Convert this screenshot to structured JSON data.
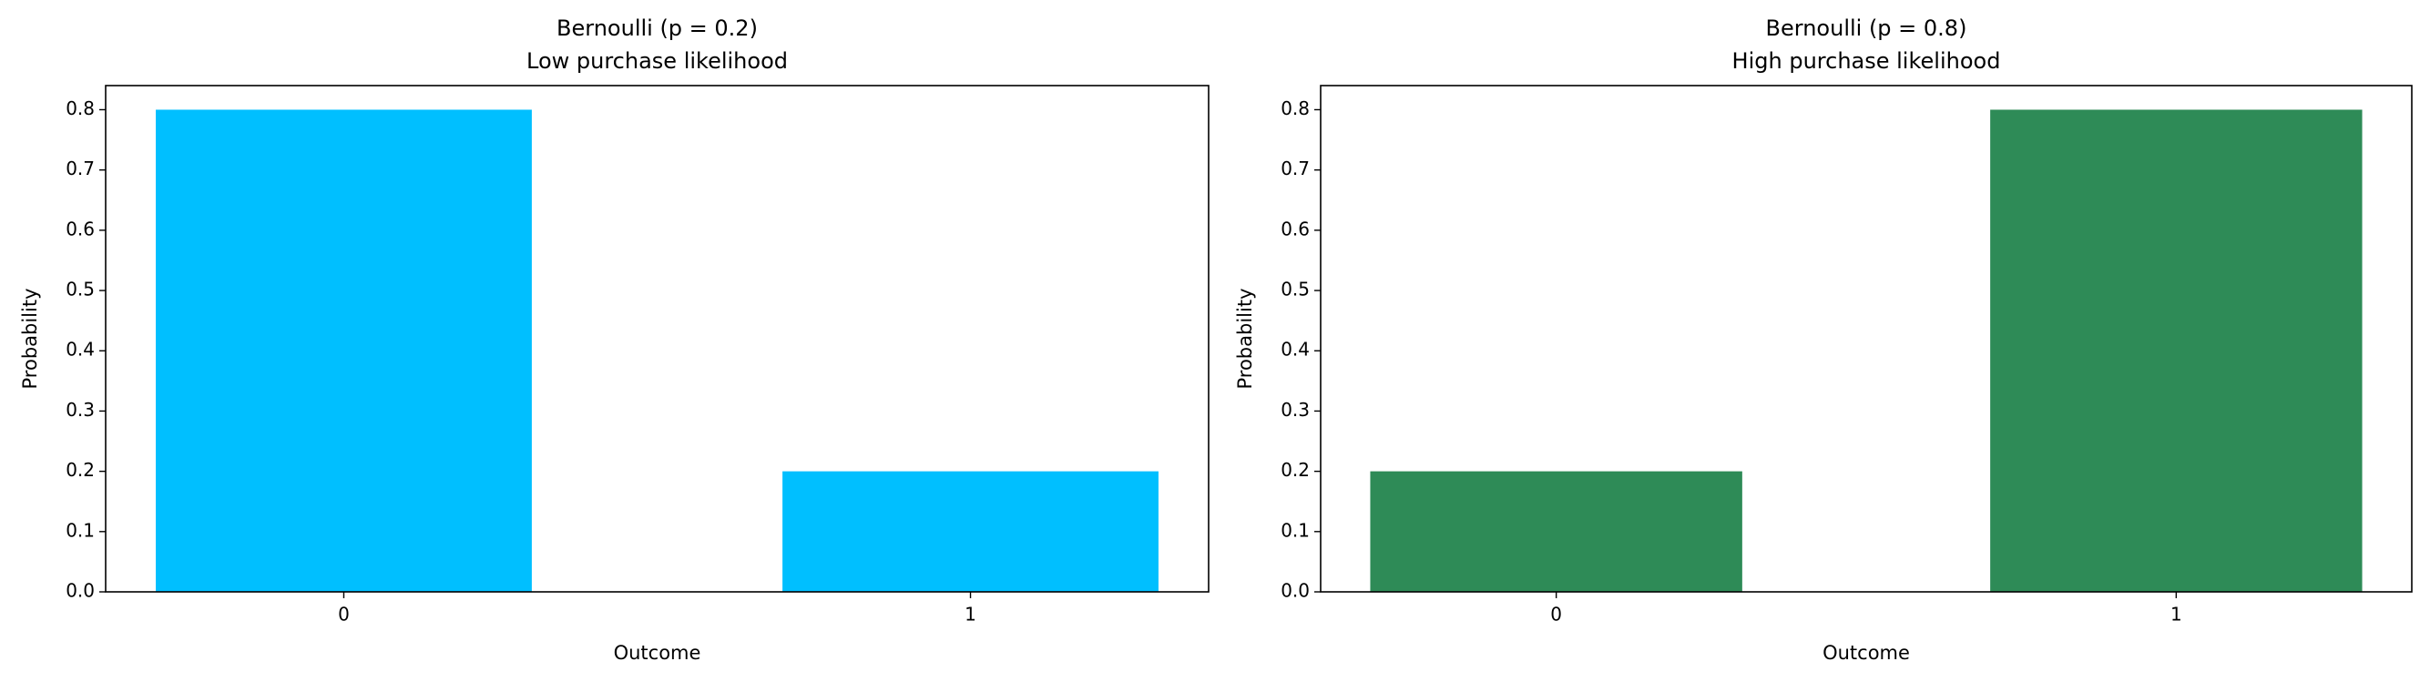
{
  "chart_data": [
    {
      "type": "bar",
      "title": "Bernoulli (p = 0.2)",
      "subtitle": "Low purchase likelihood",
      "x": [
        0,
        1
      ],
      "values": [
        0.8,
        0.2
      ],
      "color": "#00bfff",
      "xlabel": "Outcome",
      "ylabel": "Probability",
      "xlim": [
        -0.38,
        1.38
      ],
      "xticks": [
        0,
        1
      ],
      "ylim": [
        0,
        0.84
      ],
      "yticks": [
        {
          "value": 0,
          "label": "0.0"
        },
        0.1,
        0.2,
        0.3,
        0.4,
        0.5,
        0.6,
        0.7,
        0.8
      ]
    },
    {
      "type": "bar",
      "title": "Bernoulli (p = 0.8)",
      "subtitle": "High purchase likelihood",
      "x": [
        0,
        1
      ],
      "values": [
        0.2,
        0.8
      ],
      "color": "#2e8b57",
      "xlabel": "Outcome",
      "ylabel": "Probability",
      "xlim": [
        -0.38,
        1.38
      ],
      "xticks": [
        0,
        1
      ],
      "ylim": [
        0,
        0.84
      ],
      "yticks": [
        {
          "value": 0,
          "label": "0.0"
        },
        0.1,
        0.2,
        0.3,
        0.4,
        0.5,
        0.6,
        0.7,
        0.8
      ]
    }
  ]
}
